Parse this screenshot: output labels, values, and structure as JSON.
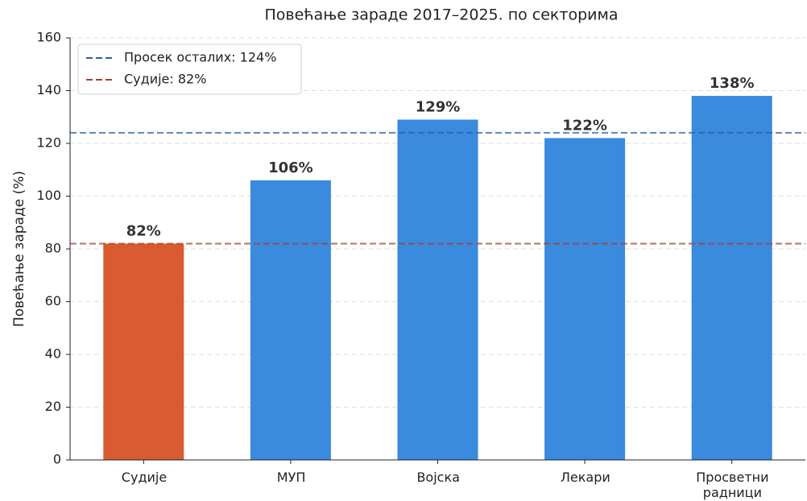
{
  "chart_data": {
    "type": "bar",
    "title": "Повећање зараде 2017–2025. по секторима",
    "ylabel": "Повећање зараде (%)",
    "categories": [
      "Судије",
      "МУП",
      "Војска",
      "Лекари",
      "Просветни\nрадници"
    ],
    "values": [
      82,
      106,
      129,
      122,
      138
    ],
    "value_labels": [
      "82%",
      "106%",
      "129%",
      "122%",
      "138%"
    ],
    "colors": [
      "#d95b32",
      "#3a8ade",
      "#3a8ade",
      "#3a8ade",
      "#3a8ade"
    ],
    "reference_lines": [
      {
        "label": "Просек осталих: 124%",
        "value": 124,
        "color": "#2b5f9e"
      },
      {
        "label": "Судије: 82%",
        "value": 82,
        "color": "#a3432b"
      }
    ],
    "legend": "upper left",
    "ylim": [
      0,
      160
    ],
    "yticks": [
      0,
      20,
      40,
      60,
      80,
      100,
      120,
      140,
      160
    ],
    "grid": true
  }
}
